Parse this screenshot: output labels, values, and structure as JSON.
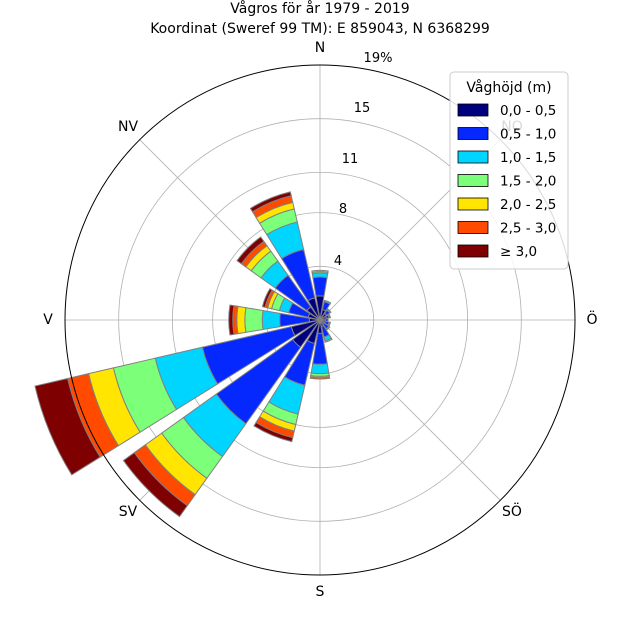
{
  "chart_data": {
    "type": "windrose",
    "title": "Vågros för år 1979 - 2019",
    "subtitle": "Koordinat (Sweref 99 TM): E 859043, N 6368299",
    "direction_labels": [
      "N",
      "NO",
      "Ö",
      "SÖ",
      "S",
      "SV",
      "V",
      "NV"
    ],
    "ring_ticks": [
      "4",
      "8",
      "11",
      "15",
      "19%"
    ],
    "r_max": 19,
    "grid": true,
    "legend": {
      "title": "Våghöjd (m)",
      "placement": "top-right",
      "entries": [
        "0,0 - 0,5",
        "0,5 - 1,0",
        "1,0 - 1,5",
        "1,5 - 2,0",
        "2,0 - 2,5",
        "2,5 - 3,0",
        "≥ 3,0"
      ]
    },
    "colors": [
      "#00007f",
      "#0528ff",
      "#00d5ff",
      "#7cff79",
      "#ffe500",
      "#ff4a00",
      "#7f0000"
    ],
    "sector_width_deg": 22.5,
    "directions_deg": [
      0,
      22.5,
      45,
      67.5,
      90,
      112.5,
      135,
      157.5,
      180,
      202.5,
      225,
      247.5,
      270,
      292.5,
      315,
      337.5
    ],
    "cumulative_percent": [
      [
        1.8,
        3.2,
        3.5,
        3.6,
        3.7,
        3.7,
        3.7
      ],
      [
        0.8,
        1.4,
        1.5,
        1.5,
        1.5,
        1.5,
        1.5
      ],
      [
        0.6,
        0.9,
        1.0,
        1.0,
        1.0,
        1.0,
        1.0
      ],
      [
        0.5,
        0.7,
        0.8,
        0.8,
        0.8,
        0.8,
        0.8
      ],
      [
        0.4,
        0.6,
        0.6,
        0.6,
        0.6,
        0.6,
        0.6
      ],
      [
        0.4,
        0.7,
        0.8,
        0.8,
        0.8,
        0.8,
        0.8
      ],
      [
        0.4,
        0.8,
        0.9,
        0.9,
        0.9,
        0.9,
        0.9
      ],
      [
        0.5,
        1.3,
        1.6,
        1.7,
        1.7,
        1.7,
        1.7
      ],
      [
        1.0,
        3.3,
        4.0,
        4.2,
        4.3,
        4.4,
        4.4
      ],
      [
        1.8,
        5.0,
        7.2,
        8.0,
        8.5,
        9.0,
        9.3
      ],
      [
        2.5,
        9.5,
        12.5,
        14.5,
        16.0,
        17.0,
        18.0
      ],
      [
        2.2,
        9.0,
        12.6,
        15.8,
        17.7,
        19.3,
        21.8
      ],
      [
        0.8,
        3.0,
        4.3,
        5.6,
        6.2,
        6.5,
        6.8
      ],
      [
        0.9,
        2.4,
        3.1,
        3.7,
        4.0,
        4.2,
        4.4
      ],
      [
        1.2,
        4.1,
        5.4,
        6.3,
        6.8,
        7.2,
        7.6
      ],
      [
        1.7,
        5.4,
        7.5,
        8.5,
        9.0,
        9.5,
        9.8
      ]
    ]
  }
}
